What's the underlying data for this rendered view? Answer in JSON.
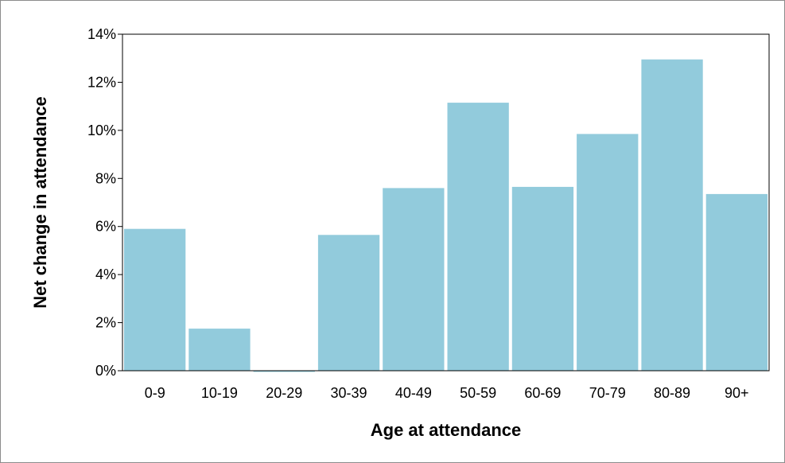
{
  "chart_data": {
    "type": "bar",
    "xlabel": "Age at attendance",
    "ylabel": "Net change in attendance",
    "categories": [
      "0-9",
      "10-19",
      "20-29",
      "30-39",
      "40-49",
      "50-59",
      "60-69",
      "70-79",
      "80-89",
      "90+"
    ],
    "values": [
      5.9,
      1.75,
      -0.05,
      5.65,
      7.6,
      11.15,
      7.65,
      9.85,
      12.95,
      7.35
    ],
    "value_unit": "%",
    "ylim": [
      0,
      14
    ],
    "yticks": [
      "0%",
      "2%",
      "4%",
      "6%",
      "8%",
      "10%",
      "12%",
      "14%"
    ],
    "grid": false,
    "legend": "none",
    "bar_color": "#92CBDC"
  }
}
